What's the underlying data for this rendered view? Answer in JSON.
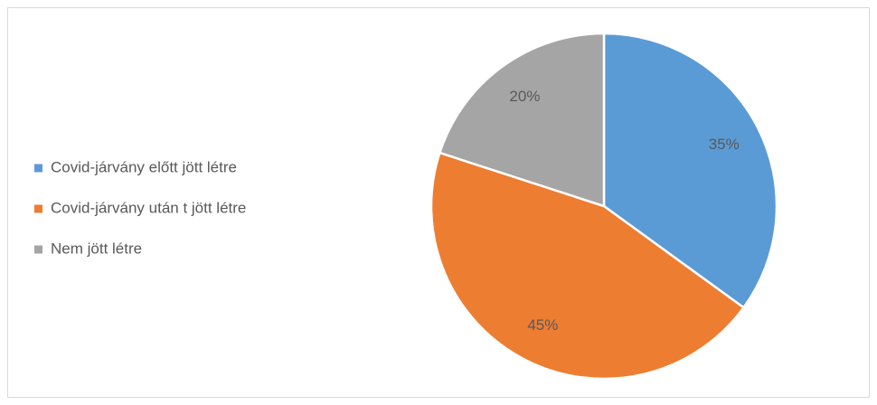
{
  "chart_data": {
    "type": "pie",
    "categories": [
      "Covid-járvány előtt jött létre",
      "Covid-járvány után t jött létre",
      "Nem jött létre"
    ],
    "values": [
      35,
      45,
      20
    ],
    "value_labels": [
      "35%",
      "45%",
      "20%"
    ],
    "colors": [
      "#5b9bd5",
      "#ed7d31",
      "#a5a5a5"
    ],
    "legend": "left"
  }
}
